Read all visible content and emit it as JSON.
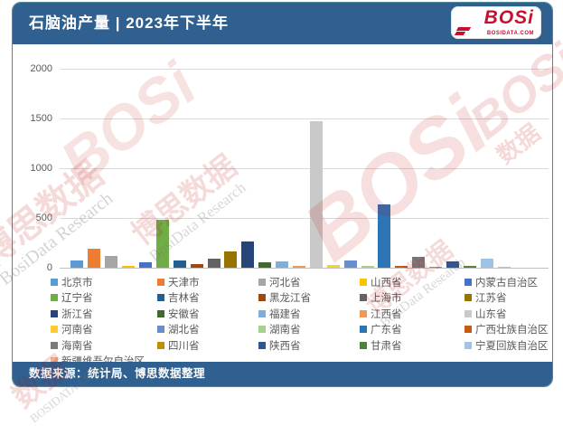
{
  "header": {
    "title": "石脑油产量 | 2023年下半年",
    "logo_text": "BOSi",
    "logo_subtext": "BOSIDATA.COM"
  },
  "footer": {
    "source": "数据来源：统计局、博思数据整理"
  },
  "watermark": {
    "cn": "博思数据",
    "en": "BosiData Research",
    "logo": "BOSi",
    "short_cn": "数据",
    "site": "BOSIDATA.COM"
  },
  "chart_data": {
    "type": "bar",
    "title": "石脑油产量 | 2023年下半年",
    "xlabel": "",
    "ylabel": "",
    "ylim": [
      0,
      2000
    ],
    "yticks": [
      0,
      500,
      1000,
      1500,
      2000
    ],
    "grid": true,
    "legend_position": "bottom",
    "series": [
      {
        "name": "北京市",
        "value": 70,
        "color": "#5B9BD5"
      },
      {
        "name": "天津市",
        "value": 190,
        "color": "#ED7D31"
      },
      {
        "name": "河北省",
        "value": 120,
        "color": "#A5A5A5"
      },
      {
        "name": "山西省",
        "value": 20,
        "color": "#FFC000"
      },
      {
        "name": "内蒙古自治区",
        "value": 55,
        "color": "#4472C4"
      },
      {
        "name": "辽宁省",
        "value": 480,
        "color": "#70AD47"
      },
      {
        "name": "吉林省",
        "value": 75,
        "color": "#255E91"
      },
      {
        "name": "黑龙江省",
        "value": 40,
        "color": "#9E480E"
      },
      {
        "name": "上海市",
        "value": 90,
        "color": "#636363"
      },
      {
        "name": "江苏省",
        "value": 160,
        "color": "#997300"
      },
      {
        "name": "浙江省",
        "value": 260,
        "color": "#264478"
      },
      {
        "name": "安徽省",
        "value": 50,
        "color": "#43682B"
      },
      {
        "name": "福建省",
        "value": 65,
        "color": "#7CAFDD"
      },
      {
        "name": "江西省",
        "value": 20,
        "color": "#F1975A"
      },
      {
        "name": "山东省",
        "value": 1470,
        "color": "#C9C9C9"
      },
      {
        "name": "河南省",
        "value": 25,
        "color": "#FFCD33"
      },
      {
        "name": "湖北省",
        "value": 70,
        "color": "#698ED0"
      },
      {
        "name": "湖南省",
        "value": 15,
        "color": "#A9D18E"
      },
      {
        "name": "广东省",
        "value": 640,
        "color": "#2E75B6"
      },
      {
        "name": "广西壮族自治区",
        "value": 15,
        "color": "#C55A11"
      },
      {
        "name": "海南省",
        "value": 110,
        "color": "#7B7B7B"
      },
      {
        "name": "四川省",
        "value": 10,
        "color": "#BF8F00"
      },
      {
        "name": "陕西省",
        "value": 60,
        "color": "#2F5597"
      },
      {
        "name": "甘肃省",
        "value": 18,
        "color": "#538135"
      },
      {
        "name": "宁夏回族自治区",
        "value": 90,
        "color": "#9DC3E6"
      },
      {
        "name": "新疆维吾尔自治区",
        "value": 12,
        "color": "#F4B183"
      }
    ]
  }
}
